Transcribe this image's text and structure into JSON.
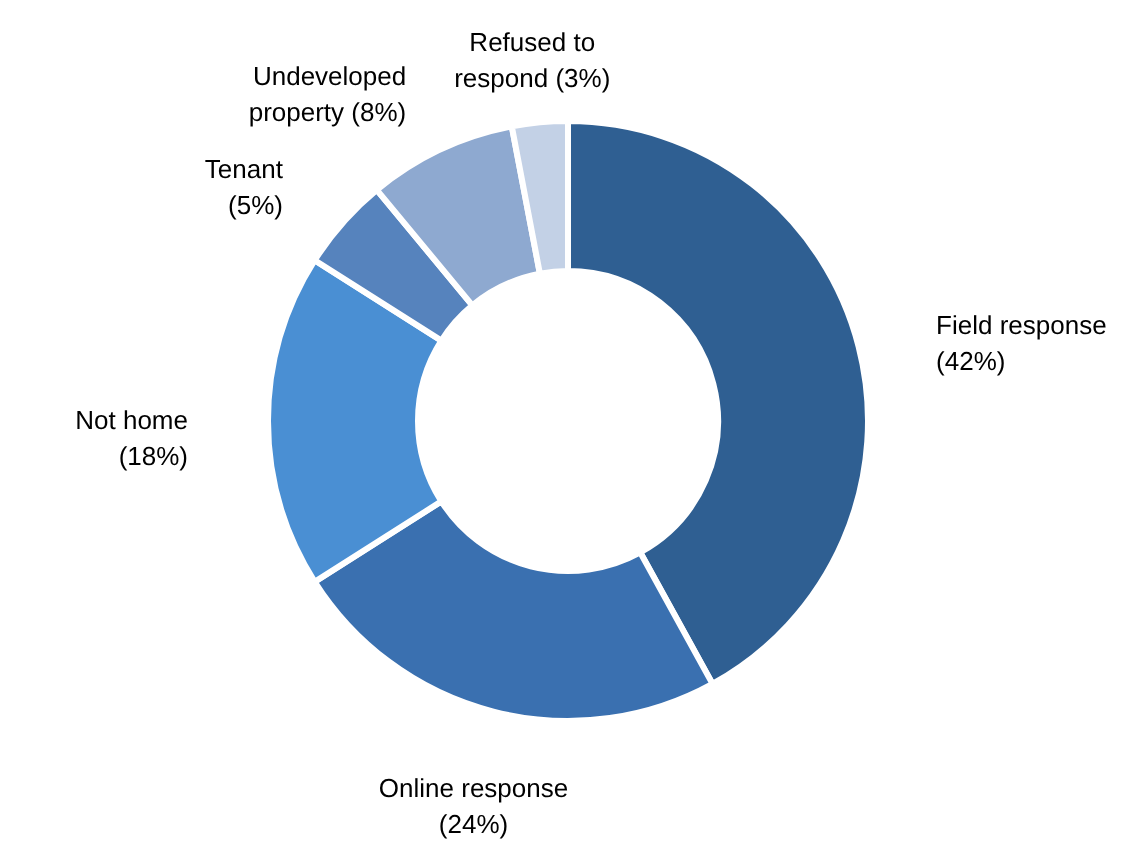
{
  "chart_data": {
    "type": "donut",
    "categories": [
      "Field response",
      "Online response",
      "Not home",
      "Tenant",
      "Undeveloped property",
      "Refused to respond"
    ],
    "values": [
      42,
      24,
      18,
      5,
      8,
      3
    ],
    "value_labels": [
      "(42%)",
      "(24%)",
      "(18%)",
      "(5%)",
      "(8%)",
      "(3%)"
    ],
    "colors": [
      "#2f5f92",
      "#3a70b0",
      "#4a8fd3",
      "#5683bd",
      "#8ea9d0",
      "#c3d1e6"
    ]
  }
}
